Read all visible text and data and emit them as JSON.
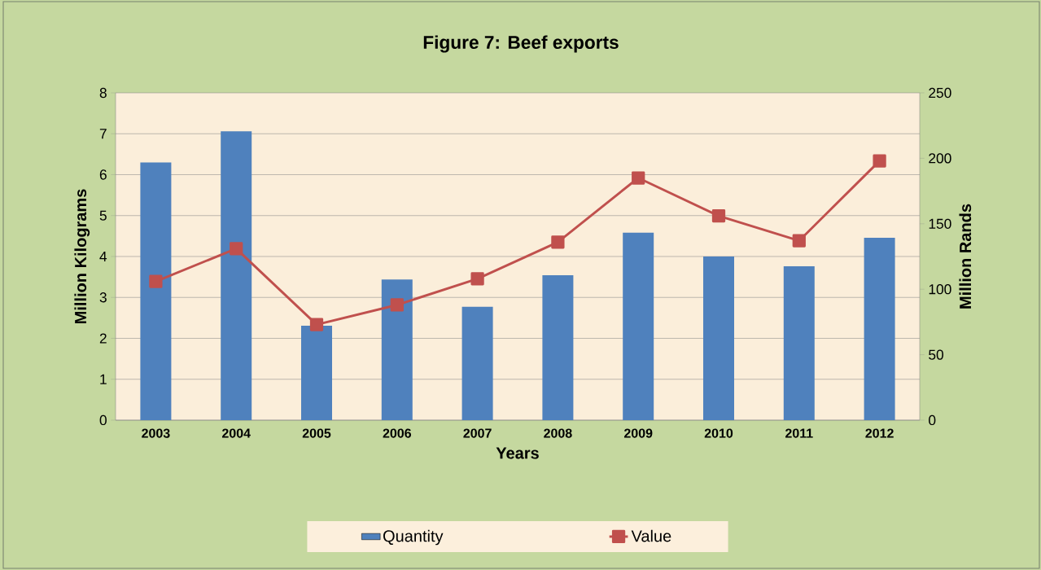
{
  "chart_data": {
    "type": "bar",
    "title": "Figure 7: Beef exports",
    "xlabel": "Years",
    "ylabel": "Million Kilograms",
    "y2label": "Million Rands",
    "categories": [
      "2003",
      "2004",
      "2005",
      "2006",
      "2007",
      "2008",
      "2009",
      "2010",
      "2011",
      "2012"
    ],
    "series": [
      {
        "name": "Quantity",
        "color": "#4f81bd",
        "values": [
          6.3,
          7.06,
          2.31,
          3.44,
          2.77,
          3.54,
          4.58,
          4.0,
          3.76,
          4.46
        ]
      },
      {
        "name": "Value",
        "type": "line",
        "axis": "y2",
        "color": "#c0504d",
        "values": [
          106,
          131,
          73,
          88,
          108,
          136,
          185,
          156,
          137,
          198
        ]
      }
    ],
    "ylim": [
      0,
      8
    ],
    "yticks": [
      0,
      1,
      2,
      3,
      4,
      5,
      6,
      7,
      8
    ],
    "y2lim": [
      0,
      250
    ],
    "y2ticks": [
      0,
      50,
      100,
      150,
      200,
      250
    ],
    "grid": "y",
    "legend": "bottom",
    "marker": "square"
  }
}
